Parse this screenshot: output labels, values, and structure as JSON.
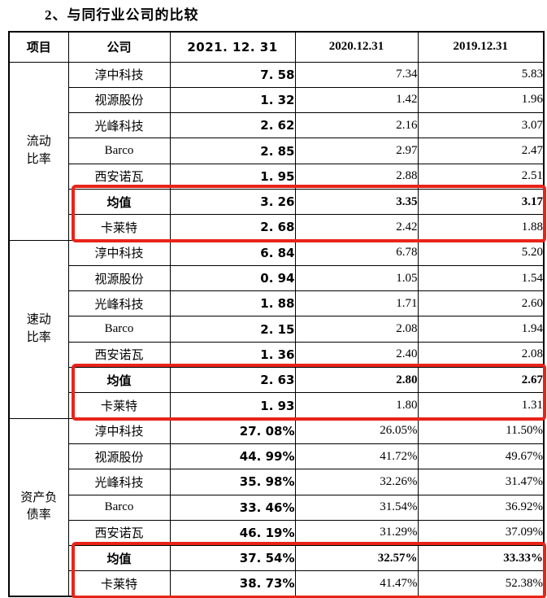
{
  "title": "2、与同行业公司的比较",
  "highlight_color": "#e8241a",
  "table": {
    "headers": [
      "项目",
      "公司",
      "2021. 12. 31",
      "2020.12.31",
      "2019.12.31"
    ],
    "sections": [
      {
        "metric": "流动比率",
        "metric_lines": [
          "流动",
          "比率"
        ],
        "rows": [
          {
            "company": "淳中科技",
            "values": [
              "7. 58",
              "7.34",
              "5.83"
            ],
            "bold": false,
            "highlighted": false
          },
          {
            "company": "视源股份",
            "values": [
              "1. 32",
              "1.42",
              "1.96"
            ],
            "bold": false,
            "highlighted": false
          },
          {
            "company": "光峰科技",
            "values": [
              "2. 62",
              "2.16",
              "3.07"
            ],
            "bold": false,
            "highlighted": false
          },
          {
            "company": "Barco",
            "values": [
              "2. 85",
              "2.97",
              "2.47"
            ],
            "bold": false,
            "highlighted": false
          },
          {
            "company": "西安诺瓦",
            "values": [
              "1. 95",
              "2.88",
              "2.51"
            ],
            "bold": false,
            "highlighted": false
          },
          {
            "company": "均值",
            "values": [
              "3. 26",
              "3.35",
              "3.17"
            ],
            "bold": true,
            "highlighted": true
          },
          {
            "company": "卡莱特",
            "values": [
              "2. 68",
              "2.42",
              "1.88"
            ],
            "bold": false,
            "highlighted": true
          }
        ]
      },
      {
        "metric": "速动比率",
        "metric_lines": [
          "速动",
          "比率"
        ],
        "rows": [
          {
            "company": "淳中科技",
            "values": [
              "6. 84",
              "6.78",
              "5.20"
            ],
            "bold": false,
            "highlighted": false
          },
          {
            "company": "视源股份",
            "values": [
              "0. 94",
              "1.05",
              "1.54"
            ],
            "bold": false,
            "highlighted": false
          },
          {
            "company": "光峰科技",
            "values": [
              "1. 88",
              "1.71",
              "2.60"
            ],
            "bold": false,
            "highlighted": false
          },
          {
            "company": "Barco",
            "values": [
              "2. 15",
              "2.08",
              "1.94"
            ],
            "bold": false,
            "highlighted": false
          },
          {
            "company": "西安诺瓦",
            "values": [
              "1. 36",
              "2.40",
              "2.08"
            ],
            "bold": false,
            "highlighted": false
          },
          {
            "company": "均值",
            "values": [
              "2. 63",
              "2.80",
              "2.67"
            ],
            "bold": true,
            "highlighted": true
          },
          {
            "company": "卡莱特",
            "values": [
              "1. 93",
              "1.80",
              "1.31"
            ],
            "bold": false,
            "highlighted": true
          }
        ]
      },
      {
        "metric": "资产负债率",
        "metric_lines": [
          "资产负",
          "债率"
        ],
        "rows": [
          {
            "company": "淳中科技",
            "values": [
              "27. 08%",
              "26.05%",
              "11.50%"
            ],
            "bold": false,
            "highlighted": false
          },
          {
            "company": "视源股份",
            "values": [
              "44. 99%",
              "41.72%",
              "49.67%"
            ],
            "bold": false,
            "highlighted": false
          },
          {
            "company": "光峰科技",
            "values": [
              "35. 98%",
              "32.26%",
              "31.47%"
            ],
            "bold": false,
            "highlighted": false
          },
          {
            "company": "Barco",
            "values": [
              "33. 46%",
              "31.54%",
              "36.92%"
            ],
            "bold": false,
            "highlighted": false
          },
          {
            "company": "西安诺瓦",
            "values": [
              "46. 19%",
              "31.29%",
              "37.09%"
            ],
            "bold": false,
            "highlighted": false
          },
          {
            "company": "均值",
            "values": [
              "37. 54%",
              "32.57%",
              "33.33%"
            ],
            "bold": true,
            "highlighted": true
          },
          {
            "company": "卡莱特",
            "values": [
              "38. 73%",
              "41.47%",
              "52.38%"
            ],
            "bold": false,
            "highlighted": true
          }
        ]
      }
    ]
  }
}
